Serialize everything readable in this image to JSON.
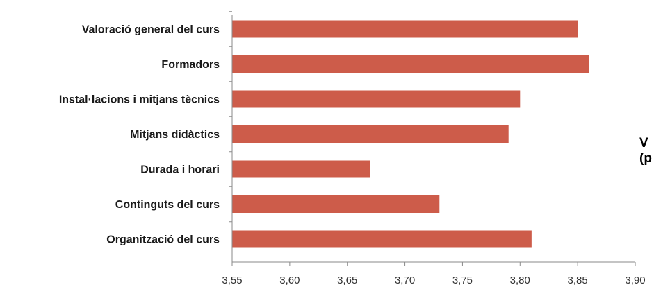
{
  "side_label": {
    "line1": "V",
    "line2": "(p"
  },
  "chart_data": {
    "type": "bar",
    "orientation": "horizontal",
    "categories": [
      "Valoració general del curs",
      "Formadors",
      "Instal·lacions i mitjans tècnics",
      "Mitjans didàctics",
      "Durada i horari",
      "Continguts del curs",
      "Organització del curs"
    ],
    "values": [
      3.85,
      3.86,
      3.8,
      3.79,
      3.67,
      3.73,
      3.81
    ],
    "xlim": [
      3.55,
      3.9
    ],
    "xticks": [
      "3,55",
      "3,60",
      "3,65",
      "3,70",
      "3,75",
      "3,80",
      "3,85",
      "3,90"
    ],
    "bar_color": "#cd5c4a",
    "grid": false,
    "title": "",
    "xlabel": "",
    "ylabel": ""
  }
}
